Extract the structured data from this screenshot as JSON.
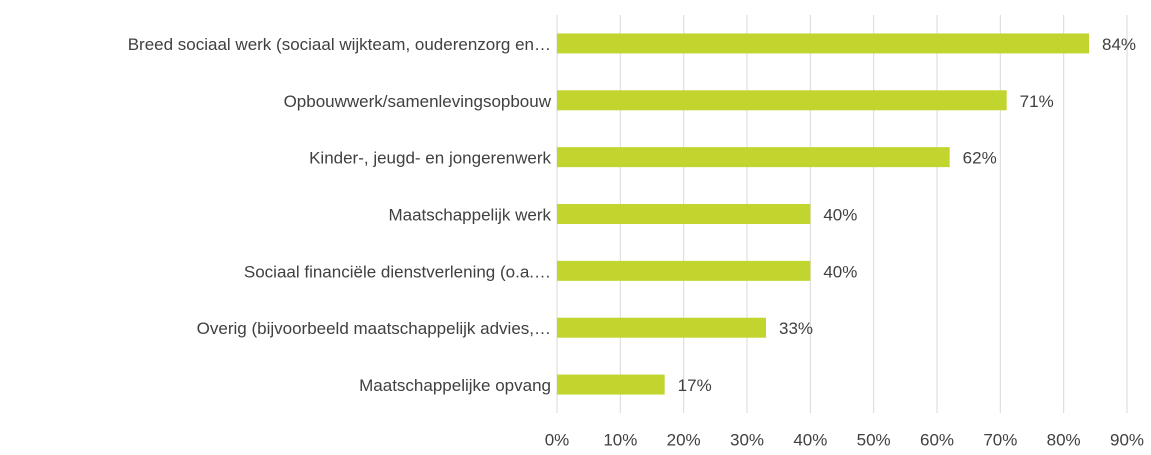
{
  "chart_data": {
    "type": "bar",
    "orientation": "horizontal",
    "categories": [
      "Breed sociaal werk (sociaal wijkteam, ouderenzorg en…",
      "Opbouwwerk/samenlevingsopbouw",
      "Kinder-, jeugd- en jongerenwerk",
      "Maatschappelijk werk",
      "Sociaal financiële dienstverlening (o.a.…",
      "Overig (bijvoorbeeld maatschappelijk advies,…",
      "Maatschappelijke opvang"
    ],
    "values": [
      84,
      71,
      62,
      40,
      40,
      33,
      17
    ],
    "value_labels": [
      "84%",
      "71%",
      "62%",
      "40%",
      "40%",
      "33%",
      "17%"
    ],
    "color": "#c2d52e",
    "xlim": [
      0,
      90
    ],
    "xticks": [
      {
        "value": 0,
        "label": "0%"
      },
      {
        "value": 10,
        "label": "10%"
      },
      {
        "value": 20,
        "label": "20%"
      },
      {
        "value": 30,
        "label": "30%"
      },
      {
        "value": 40,
        "label": "40%"
      },
      {
        "value": 50,
        "label": "50%"
      },
      {
        "value": 60,
        "label": "60%"
      },
      {
        "value": 70,
        "label": "70%"
      },
      {
        "value": 80,
        "label": "80%"
      },
      {
        "value": 90,
        "label": "90%"
      }
    ],
    "grid": true
  }
}
